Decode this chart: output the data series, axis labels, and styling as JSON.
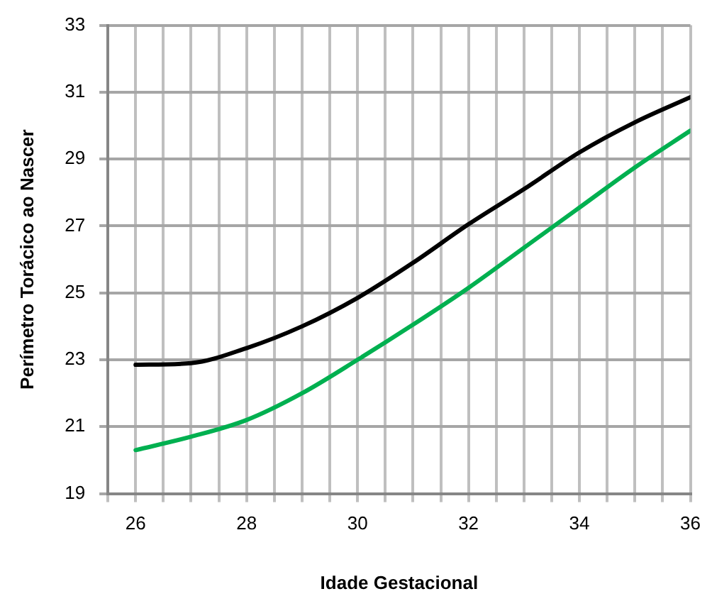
{
  "chart_data": {
    "type": "line",
    "xlabel": "Idade Gestacional",
    "ylabel": "Perímetro Torácico ao Nascer",
    "x": [
      26,
      27,
      28,
      29,
      30,
      31,
      32,
      33,
      34,
      35,
      36
    ],
    "series": [
      {
        "color": "#000000",
        "values": [
          22.85,
          22.9,
          23.35,
          24.0,
          24.85,
          25.9,
          27.05,
          28.1,
          29.2,
          30.1,
          30.85
        ]
      },
      {
        "color": "#00b050",
        "values": [
          20.3,
          20.7,
          21.2,
          22.0,
          23.0,
          24.05,
          25.15,
          26.35,
          27.55,
          28.75,
          29.85
        ]
      }
    ],
    "xlim": [
      25.5,
      36
    ],
    "xticks": [
      {
        "value": 25.5,
        "label": null
      },
      26,
      {
        "value": 26.5,
        "label": null
      },
      {
        "value": 27,
        "label": null
      },
      {
        "value": 27.5,
        "label": null
      },
      28,
      {
        "value": 28.5,
        "label": null
      },
      {
        "value": 29,
        "label": null
      },
      {
        "value": 29.5,
        "label": null
      },
      30,
      {
        "value": 30.5,
        "label": null
      },
      {
        "value": 31,
        "label": null
      },
      {
        "value": 31.5,
        "label": null
      },
      32,
      {
        "value": 32.5,
        "label": null
      },
      {
        "value": 33,
        "label": null
      },
      {
        "value": 33.5,
        "label": null
      },
      34,
      {
        "value": 34.5,
        "label": null
      },
      {
        "value": 35,
        "label": null
      },
      {
        "value": 35.5,
        "label": null
      },
      36
    ],
    "ylim": [
      19,
      33
    ],
    "yticks": [
      19,
      21,
      23,
      25,
      27,
      29,
      31,
      33
    ],
    "grid": true,
    "legend": false,
    "marker": "none",
    "line_style": "solid"
  }
}
